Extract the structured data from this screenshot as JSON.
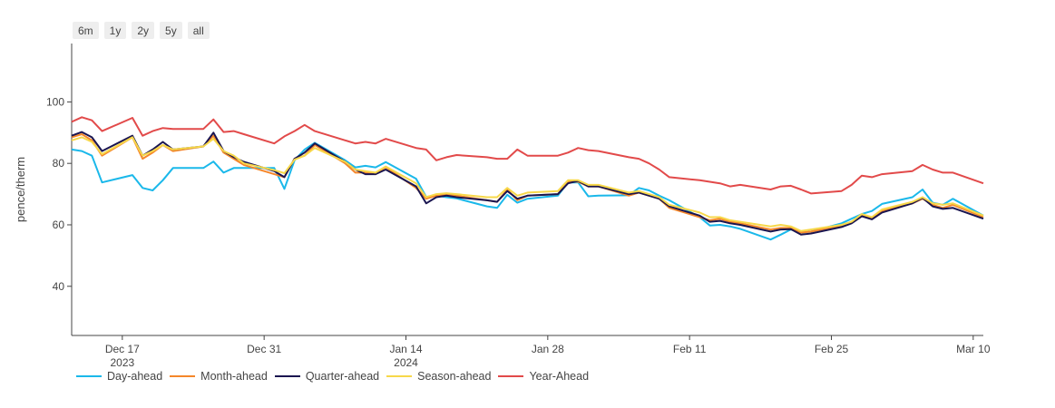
{
  "range_buttons": [
    "6m",
    "1y",
    "2y",
    "5y",
    "all"
  ],
  "chart_data": {
    "type": "line",
    "title": "",
    "xlabel": "",
    "ylabel": "pence/therm",
    "ylim": [
      24,
      119
    ],
    "xlim": [
      "2023-12-12",
      "2024-03-11"
    ],
    "y_ticks": [
      40,
      60,
      80,
      100
    ],
    "x_ticks": [
      {
        "date": "2023-12-17",
        "label": "Dec 17",
        "sublabel": "2023"
      },
      {
        "date": "2023-12-31",
        "label": "Dec 31",
        "sublabel": ""
      },
      {
        "date": "2024-01-14",
        "label": "Jan 14",
        "sublabel": "2024"
      },
      {
        "date": "2024-01-28",
        "label": "Jan 28",
        "sublabel": ""
      },
      {
        "date": "2024-02-11",
        "label": "Feb 11",
        "sublabel": ""
      },
      {
        "date": "2024-02-25",
        "label": "Feb 25",
        "sublabel": ""
      },
      {
        "date": "2024-03-10",
        "label": "Mar 10",
        "sublabel": ""
      }
    ],
    "grid": false,
    "legend": "bottom-left",
    "x": [
      "2023-12-12",
      "2023-12-13",
      "2023-12-14",
      "2023-12-15",
      "2023-12-18",
      "2023-12-19",
      "2023-12-20",
      "2023-12-21",
      "2023-12-22",
      "2023-12-25",
      "2023-12-26",
      "2023-12-27",
      "2023-12-28",
      "2023-12-29",
      "2024-01-01",
      "2024-01-02",
      "2024-01-03",
      "2024-01-04",
      "2024-01-05",
      "2024-01-08",
      "2024-01-09",
      "2024-01-10",
      "2024-01-11",
      "2024-01-12",
      "2024-01-15",
      "2024-01-16",
      "2024-01-17",
      "2024-01-18",
      "2024-01-19",
      "2024-01-22",
      "2024-01-23",
      "2024-01-24",
      "2024-01-25",
      "2024-01-26",
      "2024-01-29",
      "2024-01-30",
      "2024-01-31",
      "2024-02-01",
      "2024-02-02",
      "2024-02-05",
      "2024-02-06",
      "2024-02-07",
      "2024-02-08",
      "2024-02-09",
      "2024-02-12",
      "2024-02-13",
      "2024-02-14",
      "2024-02-15",
      "2024-02-16",
      "2024-02-19",
      "2024-02-20",
      "2024-02-21",
      "2024-02-22",
      "2024-02-23",
      "2024-02-26",
      "2024-02-27",
      "2024-02-28",
      "2024-02-29",
      "2024-03-01",
      "2024-03-04",
      "2024-03-05",
      "2024-03-06",
      "2024-03-07",
      "2024-03-08",
      "2024-03-11"
    ],
    "series": [
      {
        "name": "Day-ahead",
        "color": "#1ab8ea",
        "values": [
          84.5,
          84,
          82.5,
          73.8,
          76.2,
          72,
          71.2,
          74.5,
          78.5,
          78.5,
          80.6,
          77,
          78.5,
          78.5,
          78.5,
          71.7,
          81,
          84.5,
          86.7,
          81,
          78.7,
          79.2,
          78.7,
          80.4,
          75,
          69.1,
          69.5,
          69,
          68.6,
          66,
          65.5,
          69.8,
          67.2,
          68.5,
          69.5,
          73.8,
          73.8,
          69.3,
          69.5,
          69.6,
          72,
          71.2,
          69.5,
          68,
          62.5,
          59.8,
          60,
          59.5,
          58.7,
          55.2,
          56.8,
          58.5,
          57.5,
          57.8,
          60.5,
          62,
          63.5,
          64.5,
          66.8,
          69,
          71.5,
          67.2,
          66.5,
          68.5,
          63
        ]
      },
      {
        "name": "Month-ahead",
        "color": "#f5872a",
        "values": [
          88.5,
          89.5,
          87.5,
          82.5,
          88.5,
          81.5,
          83.5,
          86,
          84,
          85.5,
          89,
          83.5,
          81.5,
          79.5,
          76.5,
          75.5,
          81.5,
          82.5,
          86,
          80,
          77,
          77,
          76.5,
          78.8,
          72,
          68.5,
          69.5,
          70,
          69.5,
          68,
          67.5,
          71.5,
          68,
          69.5,
          70,
          74,
          74,
          72.5,
          72.5,
          69.5,
          70.5,
          69.5,
          68.5,
          65.5,
          62.5,
          61.5,
          62,
          61,
          60.5,
          58.5,
          59,
          59,
          57.5,
          57.8,
          59.8,
          61,
          63,
          62,
          64.5,
          67,
          68.5,
          66.5,
          65.5,
          66.5,
          62.5
        ]
      },
      {
        "name": "Quarter-ahead",
        "color": "#1a1550",
        "values": [
          89,
          90.2,
          88.5,
          84,
          89,
          82.5,
          84.5,
          87,
          84.5,
          85.5,
          90,
          84,
          82,
          80.5,
          77.5,
          75.5,
          81.5,
          83.5,
          86.5,
          80.5,
          78,
          76.5,
          76.5,
          78,
          72.5,
          67,
          69,
          69.5,
          69,
          68,
          67.5,
          71,
          68.5,
          69.5,
          70,
          73.5,
          74.3,
          72.5,
          72.5,
          70,
          70.5,
          69.5,
          68.5,
          66,
          63,
          61,
          61.3,
          60.5,
          60,
          57.8,
          58.5,
          58.6,
          56.8,
          57.2,
          59.3,
          60.5,
          62.8,
          61.8,
          64,
          67,
          68.8,
          66,
          65.2,
          65.5,
          62
        ]
      },
      {
        "name": "Season-ahead",
        "color": "#f7d84a",
        "values": [
          87.5,
          88.5,
          87,
          83,
          88.5,
          82.5,
          84,
          86,
          84.5,
          85.5,
          88,
          84,
          82.5,
          80,
          77.8,
          76.8,
          81.2,
          82.5,
          85,
          80.5,
          78,
          77.5,
          77,
          79,
          73.5,
          69,
          70,
          70.3,
          70,
          69,
          69,
          72,
          69.5,
          70.5,
          71,
          74.5,
          74.5,
          73,
          73,
          70.5,
          71,
          70,
          69,
          66.5,
          64,
          62.5,
          62.5,
          61.5,
          61,
          59.5,
          60,
          59.5,
          58,
          58.5,
          60,
          61,
          63.5,
          62.5,
          65,
          67.5,
          69,
          67,
          66.5,
          67,
          63
        ]
      },
      {
        "name": "Year-Ahead",
        "color": "#e24a4a",
        "values": [
          93.5,
          95,
          94,
          90.5,
          94.8,
          89,
          90.5,
          91.5,
          91.2,
          91.2,
          94.3,
          90.2,
          90.5,
          89.5,
          86.5,
          88.8,
          90.5,
          92.5,
          90.5,
          87.5,
          86.5,
          87,
          86.5,
          88,
          85,
          84.5,
          81,
          82,
          82.7,
          82,
          81.5,
          81.5,
          84.5,
          82.5,
          82.5,
          83.5,
          85,
          84.3,
          84,
          82,
          81.5,
          80,
          78,
          75.5,
          74.5,
          74,
          73.5,
          72.5,
          73,
          71.5,
          72.5,
          72.7,
          71.5,
          70.2,
          71,
          73,
          76,
          75.5,
          76.5,
          77.5,
          79.5,
          78,
          77,
          77,
          73.5
        ]
      }
    ]
  }
}
